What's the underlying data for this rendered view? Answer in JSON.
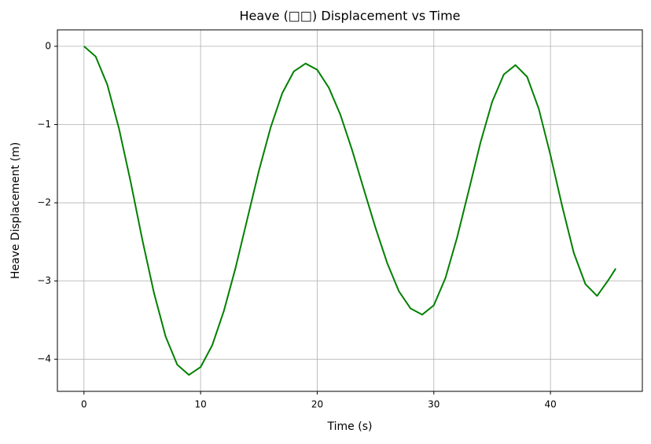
{
  "chart_data": {
    "type": "line",
    "title": "Heave (□□) Displacement vs Time",
    "xlabel": "Time (s)",
    "ylabel": "Heave Displacement (m)",
    "x": [
      0,
      1,
      2,
      3,
      4,
      5,
      6,
      7,
      8,
      9,
      10,
      11,
      12,
      13,
      14,
      15,
      16,
      17,
      18,
      19,
      20,
      21,
      22,
      23,
      24,
      25,
      26,
      27,
      28,
      29,
      30,
      31,
      32,
      33,
      34,
      35,
      36,
      37,
      38,
      39,
      40,
      41,
      42,
      43,
      44,
      45,
      45.6
    ],
    "series": [
      {
        "color": "#008000",
        "values": [
          0,
          -0.13,
          -0.49,
          -1.05,
          -1.73,
          -2.47,
          -3.15,
          -3.71,
          -4.07,
          -4.2,
          -4.1,
          -3.82,
          -3.38,
          -2.83,
          -2.21,
          -1.59,
          -1.04,
          -0.6,
          -0.32,
          -0.22,
          -0.3,
          -0.53,
          -0.88,
          -1.33,
          -1.83,
          -2.32,
          -2.77,
          -3.13,
          -3.35,
          -3.43,
          -3.31,
          -2.96,
          -2.44,
          -1.84,
          -1.23,
          -0.71,
          -0.36,
          -0.24,
          -0.39,
          -0.8,
          -1.39,
          -2.04,
          -2.64,
          -3.04,
          -3.19,
          -2.98,
          -2.84
        ]
      }
    ],
    "xlim": [
      -2.28,
      47.88
    ],
    "ylim": [
      -4.41,
      0.21
    ],
    "xticks": [
      0,
      10,
      20,
      30,
      40
    ],
    "yticks": [
      0,
      {
        "value": -1,
        "label": "−1"
      },
      {
        "value": -2,
        "label": "−2"
      },
      {
        "value": -3,
        "label": "−3"
      },
      {
        "value": -4,
        "label": "−4"
      }
    ],
    "grid": true
  }
}
